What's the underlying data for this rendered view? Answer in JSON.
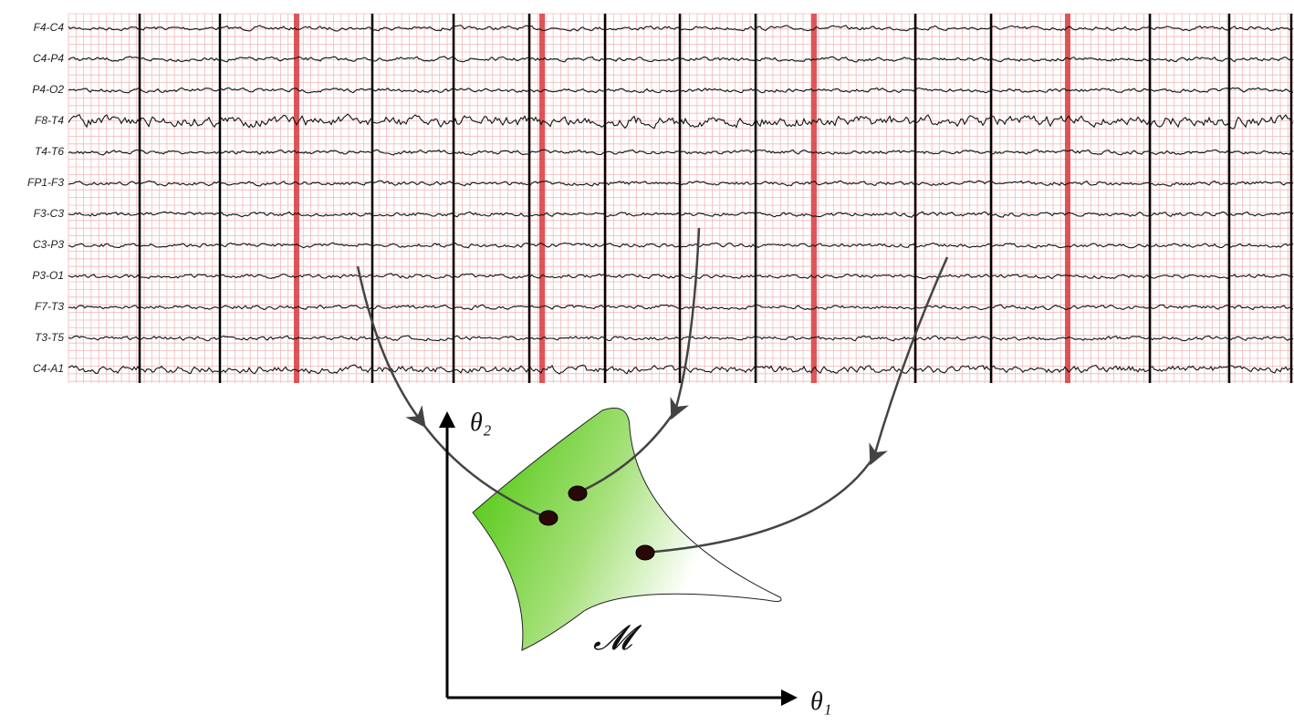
{
  "channels": [
    "F4-C4",
    "C4-P4",
    "P4-O2",
    "F8-T4",
    "T4-T6",
    "FP1-F3",
    "F3-C3",
    "C3-P3",
    "P3-O1",
    "F7-T3",
    "T3-T5",
    "C4-A1"
  ],
  "axes": {
    "y_label": "θ₂",
    "x_label": "θ₁"
  },
  "manifold_label": "𝓜"
}
